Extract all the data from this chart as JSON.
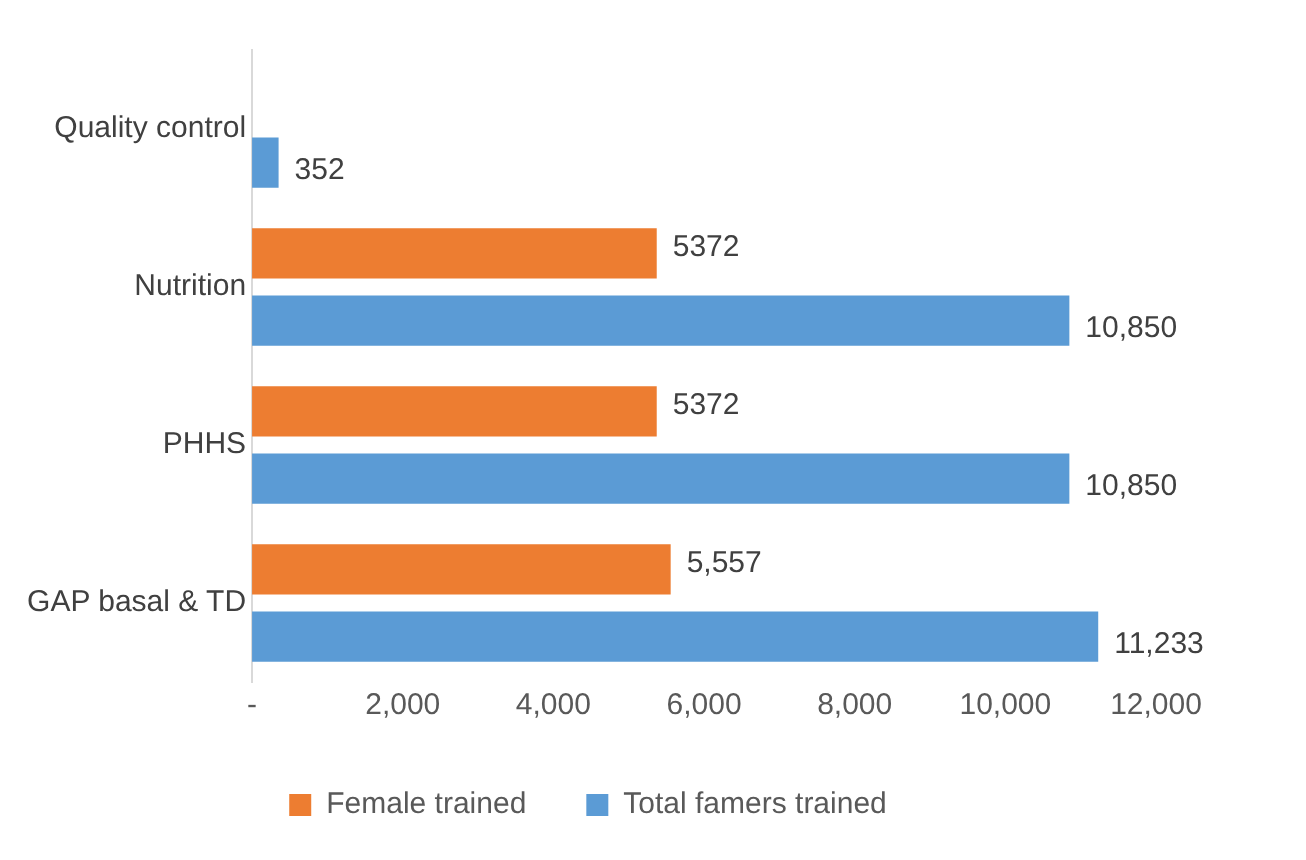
{
  "chart_data": {
    "type": "bar",
    "orientation": "horizontal",
    "categories": [
      "Quality control",
      "Nutrition",
      "PHHS",
      "GAP basal & TD"
    ],
    "series": [
      {
        "name": "Female trained",
        "color": "#ed7d31",
        "values": [
          null,
          5372,
          5372,
          5557
        ],
        "value_labels": [
          null,
          "5372",
          "5372",
          "5,557"
        ]
      },
      {
        "name": "Total famers trained",
        "color": "#5b9bd5",
        "values": [
          352,
          10850,
          10850,
          11233
        ],
        "value_labels": [
          "352",
          "10,850",
          "10,850",
          "11,233"
        ]
      }
    ],
    "xlim": [
      0,
      12000
    ],
    "xticks": [
      {
        "value": 0,
        "label": "-"
      },
      {
        "value": 2000,
        "label": "2,000"
      },
      {
        "value": 4000,
        "label": "4,000"
      },
      {
        "value": 6000,
        "label": "6,000"
      },
      {
        "value": 8000,
        "label": "8,000"
      },
      {
        "value": 10000,
        "label": "10,000"
      },
      {
        "value": 12000,
        "label": "12,000"
      }
    ],
    "grid": false,
    "legend": "bottom"
  }
}
